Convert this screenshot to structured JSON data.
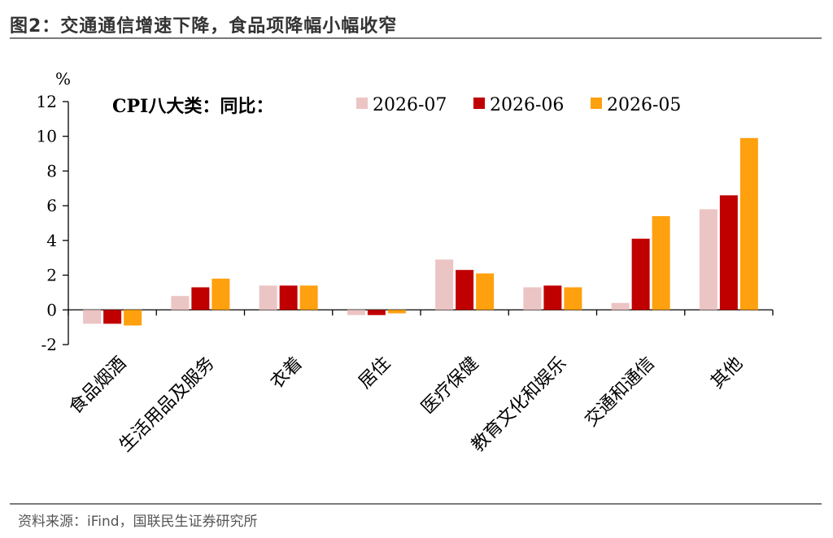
{
  "figure": {
    "title": "图2：交通通信增速下降，食品项降幅小幅收窄",
    "source": "资料来源：iFind，国联民生证券研究所"
  },
  "chart_data": {
    "type": "bar",
    "title": "CPI八大类：同比：",
    "unit": "%",
    "categories": [
      "食品烟酒",
      "生活用品及服务",
      "衣着",
      "居住",
      "医疗保健",
      "教育文化和娱乐",
      "交通和通信",
      "其他"
    ],
    "series": [
      {
        "name": "2026-07",
        "color": "#ebc4c4",
        "values": [
          -0.8,
          0.8,
          1.4,
          -0.3,
          2.9,
          1.3,
          0.4,
          5.8
        ]
      },
      {
        "name": "2026-06",
        "color": "#c00000",
        "values": [
          -0.8,
          1.3,
          1.4,
          -0.3,
          2.3,
          1.4,
          4.1,
          6.6
        ]
      },
      {
        "name": "2026-05",
        "color": "#ffa00f",
        "values": [
          -0.9,
          1.8,
          1.4,
          -0.2,
          2.1,
          1.3,
          5.4,
          9.9
        ]
      }
    ],
    "ylim": [
      -2,
      12
    ],
    "yticks": [
      -2,
      0,
      2,
      4,
      6,
      8,
      10,
      12
    ],
    "grid": false,
    "legend": "top"
  }
}
